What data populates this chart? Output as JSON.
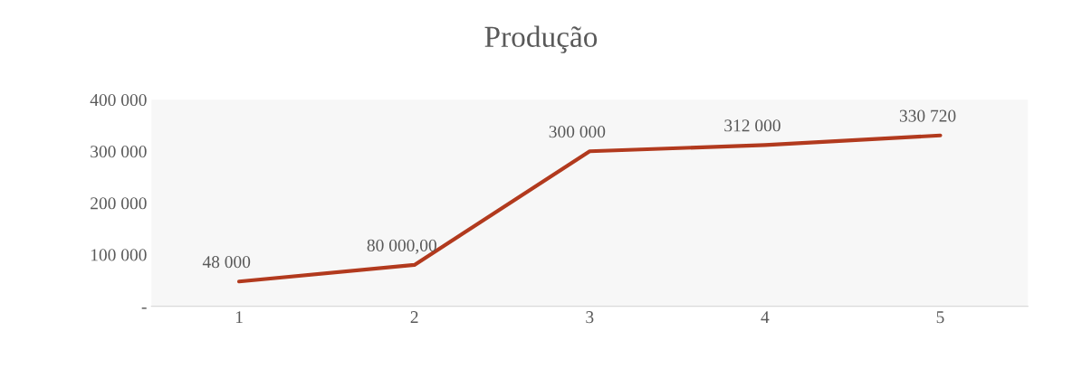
{
  "chart_data": {
    "type": "line",
    "title": "Produção",
    "categories": [
      "1",
      "2",
      "3",
      "4",
      "5"
    ],
    "series": [
      {
        "color": "#b23a1e",
        "values": [
          48000,
          80000,
          300000,
          312000,
          330720
        ],
        "value_labels": [
          "48 000",
          "80 000,00",
          "300 000",
          "312 000",
          "330 720"
        ]
      }
    ],
    "ylim": [
      0,
      400000
    ],
    "yticks": [
      {
        "value": 0,
        "label": "-"
      },
      {
        "value": 100000,
        "label": "100 000"
      },
      {
        "value": 200000,
        "label": "200 000"
      },
      {
        "value": 300000,
        "label": "300 000"
      },
      {
        "value": 400000,
        "label": "400 000"
      }
    ],
    "grid": false,
    "legend": false,
    "marker": "none",
    "line_style": "solid"
  }
}
